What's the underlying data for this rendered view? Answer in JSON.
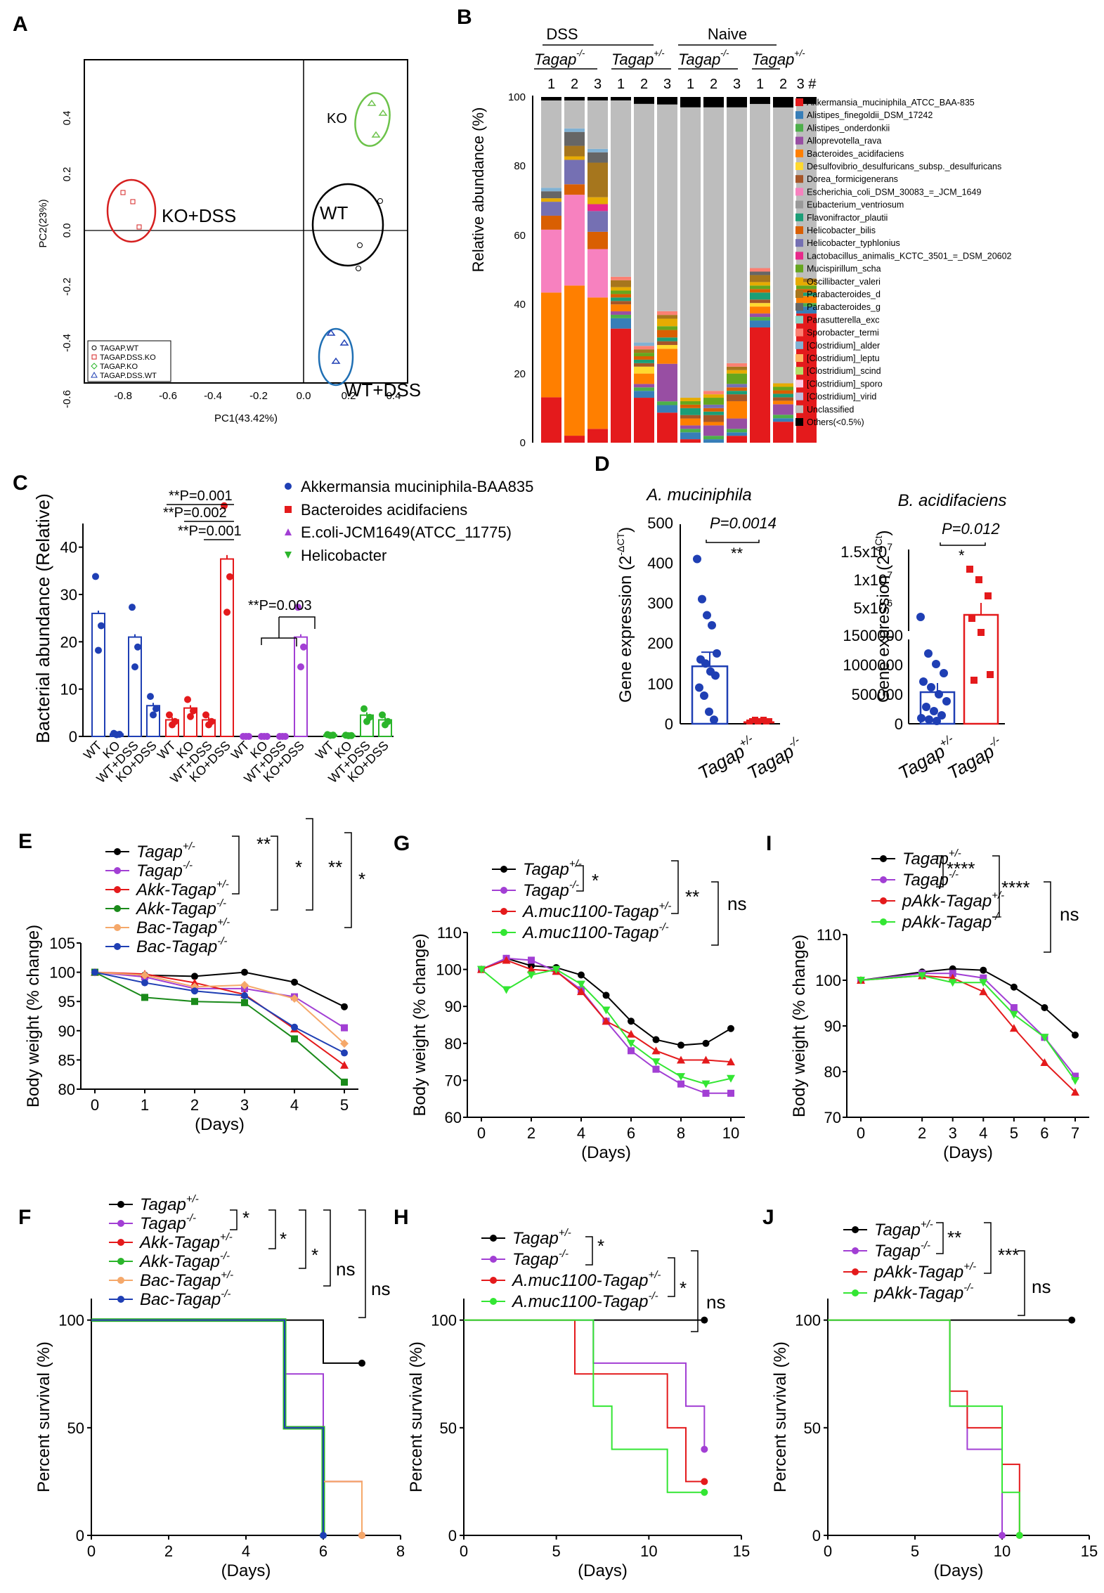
{
  "colors": {
    "red": "#e41a1c",
    "blue": "#1f4fb4",
    "green": "#2bb52b",
    "purple": "#a23fd4",
    "orange": "#ff8c1a",
    "black": "#000000",
    "gray": "#bdbdbd",
    "lime": "#33e633",
    "tan": "#f5a86a",
    "darkblue": "#1a3a9a"
  },
  "panels": {
    "A": {
      "letter": "A",
      "xlabel": "PC1(43.42%)",
      "ylabel": "PC2(23%)",
      "xticks": [
        "-0.8",
        "-0.6",
        "-0.4",
        "-0.2",
        "0.0",
        "0.2",
        "0.4"
      ],
      "yticks": [
        "0.4",
        "0.2",
        "0.0",
        "-0.2",
        "-0.4",
        "-0.6"
      ],
      "groups": [
        "KO",
        "WT",
        "KO+DSS",
        "WT+DSS"
      ],
      "legend": [
        "TAGAP.WT",
        "TAGAP.DSS.KO",
        "TAGAP.KO",
        "TAGAP.DSS.WT"
      ]
    },
    "B": {
      "letter": "B",
      "ylabel": "Relative abundance (%)",
      "yticks": [
        "0",
        "20",
        "40",
        "60",
        "80",
        "100"
      ],
      "top_dss": "DSS",
      "top_naive": "Naive",
      "geno": [
        "Tagap",
        "-/-",
        "Tagap",
        "+/-",
        "Tagap",
        "-/-",
        "Tagap",
        "+/-"
      ],
      "sample_nums": [
        "1",
        "2",
        "3",
        "1",
        "2",
        "3",
        "1",
        "2",
        "3",
        "1",
        "2",
        "3 #"
      ],
      "legend": [
        "Akkermansia_muciniphila_ATCC_BAA-835",
        "Alistipes_finegoldii_DSM_17242",
        "Alistipes_onderdonkii",
        "Alloprevotella_rava",
        "Bacteroides_acidifaciens",
        "Desulfovibrio_desulfuricans_subsp._desulfuricans",
        "Dorea_formicigenerans",
        "Escherichia_coli_DSM_30083_=_JCM_1649",
        "Eubacterium_ventriosum",
        "Flavonifractor_plautii",
        "Helicobacter_bilis",
        "Helicobacter_typhlonius",
        "Lactobacillus_animalis_KCTC_3501_=_DSM_20602",
        "Mucispirillum_scha",
        "Oscillibacter_valeri",
        "Parabacteroides_d",
        "Parabacteroides_g",
        "Parasutterella_exc",
        "Sporobacter_termi",
        "[Clostridium]_alder",
        "[Clostridium]_leptu",
        "[Clostridium]_scind",
        "[Clostridium]_sporo",
        "[Clostridium]_virid",
        "Unclassified",
        "Others(<0.5%)"
      ]
    },
    "C": {
      "letter": "C",
      "ylabel": "Bacterial abundance (Relative)",
      "yticks": [
        "0",
        "10",
        "20",
        "30",
        "40"
      ],
      "pvals": [
        "**P=0.001",
        "**P=0.002",
        "**P=0.001",
        "**P=0.003"
      ],
      "legend": [
        "Akkermansia muciniphila-BAA835",
        "Bacteroides acidifaciens",
        "E.coli-JCM1649(ATCC_11775)",
        "Helicobacter"
      ],
      "xcats": [
        "WT",
        "KO",
        "WT+DSS",
        "KO+DSS"
      ]
    },
    "D": {
      "letter": "D",
      "title1": "A. muciniphila",
      "title2": "B. acidifaciens",
      "ylabel": "Gene expression (2",
      "p1": "P=0.0014",
      "p2": "P=0.012",
      "s1": "**",
      "s2": "*",
      "yticks1": [
        "0",
        "100",
        "200",
        "300",
        "400",
        "500"
      ],
      "yticks2": [
        "0",
        "500000",
        "1000000",
        "1500000"
      ],
      "yticks2b": [
        "5x10",
        "1x10",
        "1.5x10"
      ],
      "x1": "Tagap",
      "x2": "Tagap"
    },
    "E": {
      "letter": "E",
      "ylabel": "Body weight (% change)",
      "xlabel": "(Days)",
      "xticks": [
        "0",
        "1",
        "2",
        "3",
        "4",
        "5"
      ],
      "yticks": [
        "80",
        "85",
        "90",
        "95",
        "100",
        "105"
      ],
      "legend": [
        "Tagap",
        "Tagap",
        "Akk-Tagap",
        "Akk-Tagap",
        "Bac-Tagap",
        "Bac-Tagap"
      ],
      "sig": [
        "**",
        "*",
        "**",
        "*"
      ]
    },
    "F": {
      "letter": "F",
      "ylabel": "Percent survival (%)",
      "xlabel": "(Days)",
      "xticks": [
        "0",
        "2",
        "4",
        "6",
        "8"
      ],
      "yticks": [
        "0",
        "50",
        "100"
      ],
      "legend": [
        "Tagap",
        "Tagap",
        "Akk-Tagap",
        "Akk-Tagap",
        "Bac-Tagap",
        "Bac-Tagap"
      ],
      "sig": [
        "*",
        "*",
        "*",
        "ns",
        "ns"
      ]
    },
    "G": {
      "letter": "G",
      "ylabel": "Body weight (% change)",
      "xlabel": "(Days)",
      "xticks": [
        "0",
        "2",
        "4",
        "6",
        "8",
        "10"
      ],
      "yticks": [
        "60",
        "70",
        "80",
        "90",
        "100",
        "110"
      ],
      "legend": [
        "Tagap",
        "Tagap",
        "A.muc1100-Tagap",
        "A.muc1100-Tagap"
      ],
      "sig": [
        "*",
        "**",
        "ns"
      ]
    },
    "H": {
      "letter": "H",
      "ylabel": "Percent survival (%)",
      "xlabel": "(Days)",
      "xticks": [
        "0",
        "5",
        "10",
        "15"
      ],
      "yticks": [
        "0",
        "50",
        "100"
      ],
      "legend": [
        "Tagap",
        "Tagap",
        "A.muc1100-Tagap",
        "A.muc1100-Tagap"
      ],
      "sig": [
        "*",
        "*",
        "ns"
      ]
    },
    "I": {
      "letter": "I",
      "ylabel": "Body weight (% change)",
      "xlabel": "(Days)",
      "xticks": [
        "0",
        "2",
        "3",
        "4",
        "5",
        "6",
        "7"
      ],
      "yticks": [
        "70",
        "80",
        "90",
        "100",
        "110"
      ],
      "legend": [
        "Tagap",
        "Tagap",
        "pAkk-Tagap",
        "pAkk-Tagap"
      ],
      "sig": [
        "****",
        "****",
        "ns"
      ]
    },
    "J": {
      "letter": "J",
      "ylabel": "Percent survival (%)",
      "xlabel": "(Days)",
      "xticks": [
        "0",
        "5",
        "10",
        "15"
      ],
      "yticks": [
        "0",
        "50",
        "100"
      ],
      "legend": [
        "Tagap",
        "Tagap",
        "pAkk-Tagap",
        "pAkk-Tagap"
      ],
      "sig": [
        "**",
        "***",
        "ns"
      ]
    }
  },
  "sup": {
    "het": "+/-",
    "ko": "-/-",
    "dct": "-ΔCT",
    "dct2": "-ΔCt",
    "e7": "7",
    "e6": "6"
  },
  "chart_data": [
    {
      "id": "C",
      "type": "bar",
      "categories": [
        "WT",
        "KO",
        "WT+DSS",
        "KO+DSS"
      ],
      "series": [
        {
          "name": "Akkermansia muciniphila-BAA835",
          "values": [
            26,
            0.5,
            21,
            6.5
          ]
        },
        {
          "name": "Bacteroides acidifaciens",
          "values": [
            3.5,
            6,
            3.5,
            37.5
          ]
        },
        {
          "name": "E.coli-JCM1649(ATCC_11775)",
          "values": [
            0,
            0,
            0,
            21
          ]
        },
        {
          "name": "Helicobacter",
          "values": [
            0.3,
            0.2,
            4.5,
            3.5
          ]
        }
      ],
      "ylim": [
        0,
        45
      ]
    },
    {
      "id": "E",
      "type": "line",
      "x": [
        0,
        1,
        2,
        3,
        4,
        5
      ],
      "series": [
        {
          "name": "Tagap+/-",
          "values": [
            100,
            99.5,
            99.3,
            100,
            98.3,
            94.1
          ]
        },
        {
          "name": "Tagap-/-",
          "values": [
            100,
            99.2,
            97.2,
            97.2,
            95.8,
            90.5
          ]
        },
        {
          "name": "Akk-Tagap+/-",
          "values": [
            100,
            99.7,
            98.2,
            96.2,
            90.3,
            84.1
          ]
        },
        {
          "name": "Akk-Tagap-/-",
          "values": [
            100,
            95.7,
            95,
            94.8,
            88.6,
            81.2
          ]
        },
        {
          "name": "Bac-Tagap+/-",
          "values": [
            100,
            99.5,
            97.5,
            97.8,
            95.5,
            87.8
          ]
        },
        {
          "name": "Bac-Tagap-/-",
          "values": [
            100,
            98.2,
            96.8,
            96,
            90.6,
            86.2
          ]
        }
      ],
      "ylim": [
        80,
        105
      ]
    },
    {
      "id": "G",
      "type": "line",
      "x": [
        0,
        1,
        2,
        3,
        4,
        5,
        6,
        7,
        8,
        9,
        10
      ],
      "series": [
        {
          "name": "Tagap+/-",
          "values": [
            100,
            103,
            101,
            100.5,
            98.5,
            93,
            86,
            81,
            79.5,
            80,
            84
          ]
        },
        {
          "name": "Tagap-/-",
          "values": [
            100,
            103,
            102.5,
            99.5,
            94.5,
            86,
            78,
            73,
            69,
            66.5,
            66.5
          ]
        },
        {
          "name": "A.muc1100-Tagap+/-",
          "values": [
            100,
            102.5,
            100,
            99.5,
            94,
            86,
            82.5,
            78,
            75.5,
            75.5,
            75
          ]
        },
        {
          "name": "A.muc1100-Tagap-/-",
          "values": [
            100,
            94.5,
            98.5,
            100,
            96,
            89,
            80,
            75,
            71,
            69,
            70.5
          ]
        }
      ],
      "ylim": [
        60,
        110
      ]
    },
    {
      "id": "I",
      "type": "line",
      "x": [
        0,
        2,
        3,
        4,
        5,
        6,
        7
      ],
      "series": [
        {
          "name": "Tagap+/-",
          "values": [
            100,
            101.8,
            102.5,
            102.2,
            98.5,
            94,
            88
          ]
        },
        {
          "name": "Tagap-/-",
          "values": [
            100,
            101.5,
            101.5,
            100.5,
            94,
            87.5,
            79
          ]
        },
        {
          "name": "pAkk-Tagap+/-",
          "values": [
            100,
            101,
            100.5,
            97.5,
            89.5,
            82,
            75.5
          ]
        },
        {
          "name": "pAkk-Tagap-/-",
          "values": [
            100,
            101,
            99.5,
            99.5,
            92.5,
            87.5,
            78
          ]
        }
      ],
      "ylim": [
        70,
        110
      ]
    },
    {
      "id": "D",
      "type": "scatter",
      "groups": [
        "Tagap+/-",
        "Tagap-/-"
      ],
      "A.muciniphila_mean": [
        143,
        2
      ],
      "B.acidifaciens_mean": [
        540000,
        3000000
      ]
    },
    {
      "id": "A",
      "type": "scatter",
      "groups": [
        "WT",
        "KO",
        "KO+DSS",
        "WT+DSS"
      ]
    }
  ]
}
